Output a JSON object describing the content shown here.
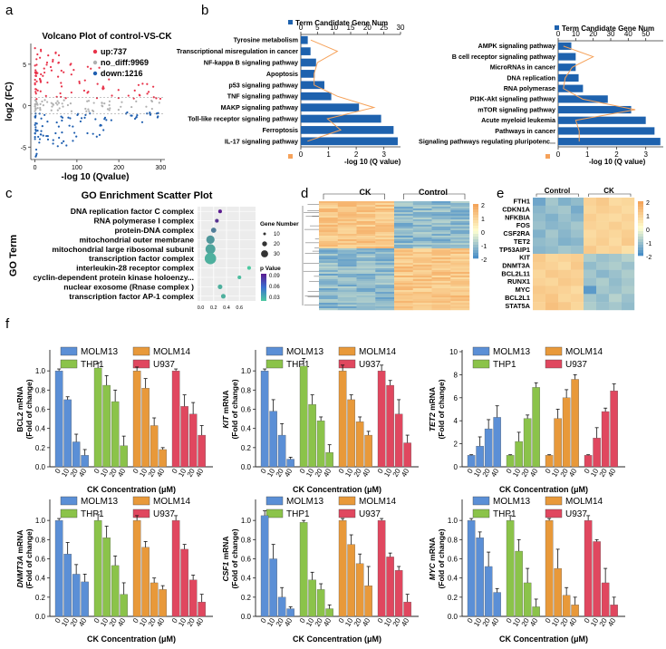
{
  "colors": {
    "up": "#e8334a",
    "nodiff": "#b0b0b0",
    "down": "#1f5fb0",
    "bar_blue": "#1e62ae",
    "line_orange": "#f6a25a",
    "heat_hi": "#f4a55b",
    "heat_mid": "#ffffd0",
    "heat_lo": "#4a8fc8",
    "MOLM13": "#5b8fd6",
    "THP1": "#8bc34a",
    "MOLM14": "#e8993a",
    "U937": "#e0475f"
  },
  "panel_labels": {
    "a": "a",
    "b": "b",
    "c": "c",
    "d": "d",
    "e": "e",
    "f": "f"
  },
  "chart_data": [
    {
      "id": "volcano",
      "type": "scatter",
      "title": "Volcano Plot of control-VS-CK",
      "xlabel": "-log 10 (Qvalue)",
      "ylabel": "log2 (FC)",
      "xticks": [
        0,
        100,
        200,
        300
      ],
      "yticks": [
        -5,
        0,
        5
      ],
      "xlim": [
        -10,
        310
      ],
      "ylim": [
        -6.5,
        7.5
      ],
      "legend": [
        {
          "label": "up:737",
          "group": "up"
        },
        {
          "label": "no_diff:9969",
          "group": "nodiff"
        },
        {
          "label": "down:1216",
          "group": "down"
        }
      ]
    },
    {
      "id": "kegg_left",
      "type": "bar",
      "orientation": "horizontal",
      "legend_label": "Term Candidate Gene Num",
      "xlabel": "-log 10 (Q value)",
      "categories": [
        "Tyrosine metabolism",
        "Transcriptional misregulation in cancer",
        "NF-kappa B signaling pathway",
        "Apoptosis",
        "p53 signaling pathway",
        "TNF signaling pathway",
        "MAKP signaling pathway",
        "Toll-like receptor signaling pathway",
        "Ferroptosis",
        "IL-17 signaling pathway"
      ],
      "values": [
        0.25,
        0.35,
        0.55,
        0.5,
        0.85,
        1.1,
        2.1,
        2.9,
        3.35,
        3.5
      ],
      "gene_num": [
        3,
        11,
        5,
        4,
        4,
        11,
        22,
        8,
        12,
        2
      ],
      "xlim": [
        0,
        3.6
      ],
      "xticks": [
        0,
        1,
        2,
        3
      ],
      "top_xlim": [
        0,
        30
      ],
      "top_xticks": [
        0,
        5,
        10,
        15,
        20,
        25,
        30
      ]
    },
    {
      "id": "kegg_right",
      "type": "bar",
      "orientation": "horizontal",
      "legend_label": "Term Candidate Gene Num",
      "xlabel": "-log 10 (Q value)",
      "categories": [
        "AMPK signaling pathway",
        "B cell receptor signaling pathway",
        "MicroRNAs in cancer",
        "DNA  replication",
        "RNA polymerase",
        "PI3K-Akt signaling pathway",
        "mTOR signaling pathway",
        "Acute myeloid leukemia",
        "Pathways in cancer",
        "Signaling pathways  regulating pluripotenc..."
      ],
      "values": [
        0.45,
        0.6,
        0.6,
        0.7,
        0.85,
        1.7,
        2.5,
        3.0,
        3.3,
        3.5
      ],
      "gene_num": [
        3,
        20,
        8,
        4,
        3,
        14,
        44,
        10,
        12,
        12
      ],
      "xlim": [
        0,
        3.6
      ],
      "xticks": [
        0,
        1,
        2,
        3
      ],
      "top_xlim": [
        0,
        60
      ],
      "top_xticks": [
        0,
        10,
        20,
        30,
        40,
        50
      ]
    },
    {
      "id": "go_scatter",
      "type": "scatter",
      "title": "GO Enrichment Scatter Plot",
      "ylabel": "GO Term",
      "categories": [
        "DNA replication factor C complex",
        "RNA polymerase I complex",
        "protein-DNA complex",
        "mitochondrial outer membrane",
        "mitochondrial large ribosomal subunit",
        "transcription factor complex",
        "interleukin-28 receptor complex",
        "cyclin-dependent protein kinase holoenzy...",
        "nuclear exosome (Rnase complex )",
        "transcription factor AP-1 complex"
      ],
      "x": [
        0.3,
        0.25,
        0.2,
        0.15,
        0.15,
        0.15,
        0.75,
        0.6,
        0.3,
        0.35
      ],
      "size": [
        5,
        5,
        10,
        20,
        25,
        30,
        5,
        5,
        8,
        8
      ],
      "pvalue": [
        0.09,
        0.08,
        0.05,
        0.04,
        0.035,
        0.03,
        0.02,
        0.025,
        0.03,
        0.03
      ],
      "xticks": [
        0.0,
        0.2,
        0.4,
        0.6
      ],
      "xtick_labels": [
        "0.0",
        "0.2",
        "0.4",
        "0.6"
      ],
      "xlim": [
        -0.05,
        0.85
      ],
      "size_legend_title": "Gene Number",
      "size_legend": [
        "10",
        "20",
        "30"
      ],
      "color_legend_title": "p Value",
      "color_legend": [
        "0.09",
        "0.06",
        "0.03"
      ]
    },
    {
      "id": "heatmap_d",
      "type": "heatmap",
      "groups": [
        "CK",
        "Control"
      ],
      "colorbar_ticks": [
        "2",
        "1",
        "0",
        "-1",
        "-2"
      ]
    },
    {
      "id": "heatmap_e",
      "type": "heatmap",
      "groups": [
        "Control",
        "CK"
      ],
      "rows": [
        "FTH1",
        "CDKN1A",
        "NFKBIA",
        "FOS",
        "CSF2RA",
        "TET2",
        "TP53AIP1",
        "KIT",
        "DNMT3A",
        "BCL2L11",
        "RUNX1",
        "MYC",
        "BCL2L1",
        "STAT5A"
      ],
      "colorbar_ticks": [
        "2",
        "1",
        "0",
        "-1",
        "-2"
      ],
      "values": [
        [
          -1.6,
          -1.0,
          -1.4,
          -1.2,
          1.0,
          1.2,
          0.8,
          0.9
        ],
        [
          -1.3,
          -1.1,
          -1.0,
          -1.5,
          0.9,
          1.1,
          1.0,
          0.8
        ],
        [
          -1.2,
          -1.4,
          -1.1,
          -1.3,
          1.1,
          0.9,
          0.8,
          1.0
        ],
        [
          -1.1,
          -1.3,
          -1.2,
          -1.0,
          1.0,
          0.9,
          1.1,
          0.9
        ],
        [
          -1.4,
          -1.0,
          -1.3,
          -1.1,
          0.8,
          1.0,
          0.9,
          1.1
        ],
        [
          -1.2,
          -1.1,
          -1.4,
          -1.3,
          0.9,
          1.1,
          0.8,
          1.2
        ],
        [
          -1.3,
          -1.2,
          -1.0,
          -1.1,
          1.2,
          0.9,
          1.0,
          0.7
        ],
        [
          1.2,
          0.9,
          1.0,
          1.1,
          -0.9,
          -1.1,
          -1.0,
          -0.8
        ],
        [
          1.1,
          1.0,
          0.8,
          1.2,
          -1.2,
          -1.0,
          -0.9,
          -1.1
        ],
        [
          0.9,
          1.2,
          1.1,
          1.0,
          -1.0,
          -1.3,
          -1.1,
          -0.9
        ],
        [
          1.0,
          0.9,
          1.2,
          1.1,
          -1.1,
          -0.9,
          -1.2,
          -1.0
        ],
        [
          1.2,
          1.1,
          1.0,
          0.8,
          -1.8,
          -1.0,
          -1.1,
          -0.9
        ],
        [
          1.1,
          1.3,
          0.9,
          1.0,
          -1.0,
          -1.2,
          -0.8,
          -1.1
        ],
        [
          1.0,
          1.4,
          1.2,
          0.9,
          -0.9,
          -1.1,
          -1.0,
          -1.2
        ]
      ]
    },
    {
      "id": "bars_f",
      "type": "bar",
      "xlabel": "CK Concentration (μM)",
      "ytitle_suffix": "(Fold of change)",
      "lines": [
        "MOLM13",
        "THP1",
        "MOLM14",
        "U937"
      ],
      "concentrations": [
        "0",
        "10",
        "20",
        "40"
      ],
      "panels": [
        {
          "gene": "BCL2",
          "italic": false,
          "ylim": [
            0,
            1.2
          ],
          "yticks": [
            "0.0",
            "0.2",
            "0.4",
            "0.6",
            "0.8",
            "1.0"
          ],
          "series": [
            {
              "name": "MOLM13",
              "values": [
                1.0,
                0.7,
                0.26,
                0.12
              ],
              "errors": [
                0.02,
                0.03,
                0.08,
                0.06
              ]
            },
            {
              "name": "THP1",
              "values": [
                1.03,
                0.85,
                0.68,
                0.22
              ],
              "errors": [
                0.05,
                0.1,
                0.12,
                0.1
              ]
            },
            {
              "name": "MOLM14",
              "values": [
                1.0,
                0.82,
                0.43,
                0.18
              ],
              "errors": [
                0.04,
                0.1,
                0.08,
                0.02
              ]
            },
            {
              "name": "U937",
              "values": [
                1.0,
                0.63,
                0.55,
                0.33
              ],
              "errors": [
                0.02,
                0.12,
                0.12,
                0.1
              ]
            }
          ]
        },
        {
          "gene": "KIT",
          "italic": true,
          "ylim": [
            0,
            1.2
          ],
          "yticks": [
            "0.0",
            "0.2",
            "0.4",
            "0.6",
            "0.8",
            "1.0"
          ],
          "series": [
            {
              "name": "MOLM13",
              "values": [
                1.0,
                0.58,
                0.33,
                0.08
              ],
              "errors": [
                0.02,
                0.12,
                0.12,
                0.02
              ]
            },
            {
              "name": "THP1",
              "values": [
                1.05,
                0.65,
                0.48,
                0.15
              ],
              "errors": [
                0.08,
                0.1,
                0.04,
                0.08
              ]
            },
            {
              "name": "MOLM14",
              "values": [
                1.0,
                0.7,
                0.47,
                0.33
              ],
              "errors": [
                0.06,
                0.05,
                0.05,
                0.04
              ]
            },
            {
              "name": "U937",
              "values": [
                1.0,
                0.85,
                0.55,
                0.25
              ],
              "errors": [
                0.06,
                0.05,
                0.15,
                0.08
              ]
            }
          ]
        },
        {
          "gene": "TET2",
          "italic": true,
          "ylim": [
            0,
            10
          ],
          "yticks": [
            "0",
            "2",
            "4",
            "6",
            "8",
            "10"
          ],
          "series": [
            {
              "name": "MOLM13",
              "values": [
                1.0,
                1.8,
                3.3,
                4.3
              ],
              "errors": [
                0.05,
                0.8,
                0.8,
                1.0
              ]
            },
            {
              "name": "THP1",
              "values": [
                1.0,
                2.2,
                4.2,
                6.9
              ],
              "errors": [
                0.05,
                0.8,
                0.3,
                0.4
              ]
            },
            {
              "name": "MOLM14",
              "values": [
                1.0,
                4.2,
                6.0,
                7.6
              ],
              "errors": [
                0.05,
                0.8,
                0.7,
                0.4
              ]
            },
            {
              "name": "U937",
              "values": [
                1.0,
                2.5,
                4.8,
                6.6
              ],
              "errors": [
                0.05,
                0.9,
                0.3,
                0.6
              ]
            }
          ]
        },
        {
          "gene": "DNMT3A",
          "italic": true,
          "ylim": [
            0,
            1.2
          ],
          "yticks": [
            "0.0",
            "0.2",
            "0.4",
            "0.6",
            "0.8",
            "1.0"
          ],
          "series": [
            {
              "name": "MOLM13",
              "values": [
                1.0,
                0.65,
                0.44,
                0.36
              ],
              "errors": [
                0.02,
                0.12,
                0.1,
                0.08
              ]
            },
            {
              "name": "THP1",
              "values": [
                1.0,
                0.82,
                0.53,
                0.23
              ],
              "errors": [
                0.06,
                0.12,
                0.1,
                0.12
              ]
            },
            {
              "name": "MOLM14",
              "values": [
                1.0,
                0.72,
                0.35,
                0.28
              ],
              "errors": [
                0.05,
                0.06,
                0.05,
                0.04
              ]
            },
            {
              "name": "U937",
              "values": [
                1.0,
                0.7,
                0.38,
                0.15
              ],
              "errors": [
                0.05,
                0.05,
                0.05,
                0.08
              ]
            }
          ]
        },
        {
          "gene": "CSF1",
          "italic": true,
          "ylim": [
            0,
            1.2
          ],
          "yticks": [
            "0.0",
            "0.2",
            "0.4",
            "0.6",
            "0.8",
            "1.0"
          ],
          "series": [
            {
              "name": "MOLM13",
              "values": [
                1.05,
                0.6,
                0.2,
                0.08
              ],
              "errors": [
                0.05,
                0.15,
                0.1,
                0.02
              ]
            },
            {
              "name": "THP1",
              "values": [
                0.98,
                0.38,
                0.28,
                0.08
              ],
              "errors": [
                0.02,
                0.08,
                0.06,
                0.04
              ]
            },
            {
              "name": "MOLM14",
              "values": [
                1.0,
                0.75,
                0.55,
                0.32
              ],
              "errors": [
                0.02,
                0.1,
                0.1,
                0.2
              ]
            },
            {
              "name": "U937",
              "values": [
                1.0,
                0.62,
                0.48,
                0.15
              ],
              "errors": [
                0.02,
                0.04,
                0.04,
                0.08
              ]
            }
          ]
        },
        {
          "gene": "MYC",
          "italic": true,
          "ylim": [
            0,
            1.2
          ],
          "yticks": [
            "0.0",
            "0.2",
            "0.4",
            "0.6",
            "0.8",
            "1.0"
          ],
          "series": [
            {
              "name": "MOLM13",
              "values": [
                1.0,
                0.82,
                0.52,
                0.25
              ],
              "errors": [
                0.02,
                0.06,
                0.15,
                0.04
              ]
            },
            {
              "name": "THP1",
              "values": [
                1.0,
                0.68,
                0.35,
                0.1
              ],
              "errors": [
                0.05,
                0.12,
                0.15,
                0.08
              ]
            },
            {
              "name": "MOLM14",
              "values": [
                1.0,
                0.5,
                0.22,
                0.12
              ],
              "errors": [
                0.02,
                0.2,
                0.08,
                0.08
              ]
            },
            {
              "name": "U937",
              "values": [
                1.0,
                0.78,
                0.35,
                0.12
              ],
              "errors": [
                0.05,
                0.02,
                0.15,
                0.08
              ]
            }
          ]
        }
      ]
    }
  ]
}
